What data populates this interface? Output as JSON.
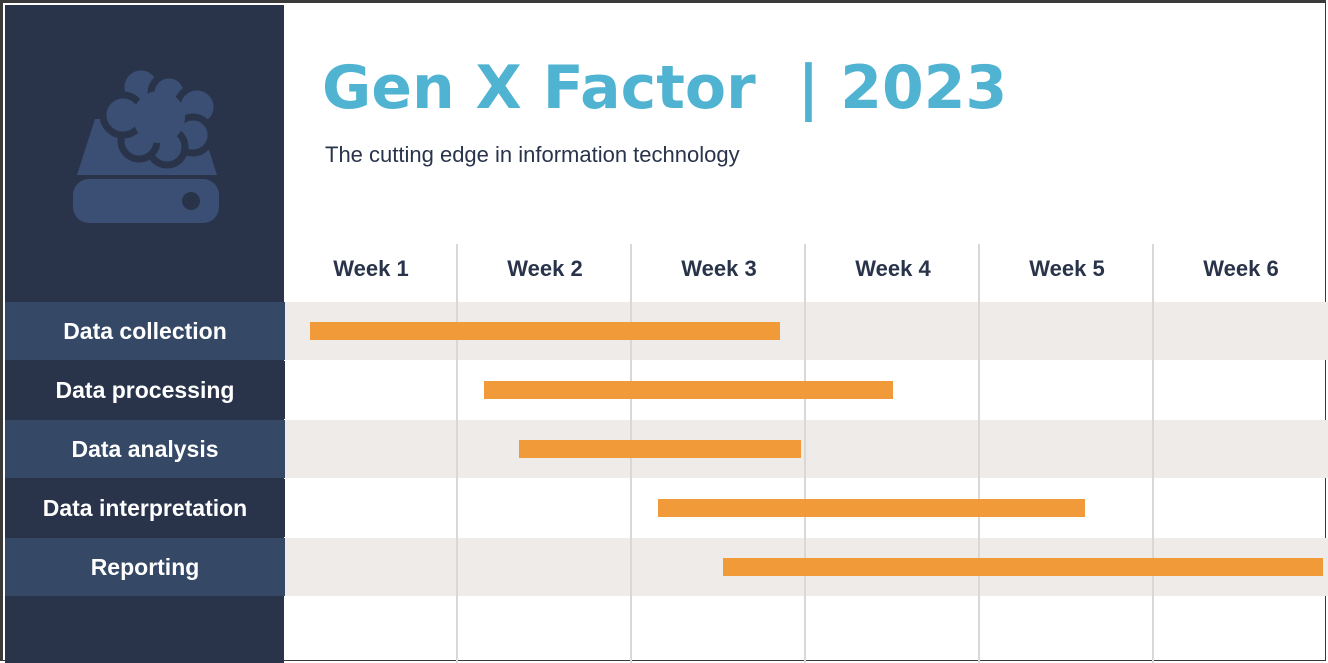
{
  "header": {
    "title": "Gen X Factor  | 2023",
    "subtitle": "The cutting edge in information technology"
  },
  "colors": {
    "sidebar": "#29344b",
    "label_highlight": "#354866",
    "accent": "#4fb3d1",
    "bar": "#f09a3a",
    "band": "#efebe8"
  },
  "logo": {
    "icon": "cloud-storage-icon"
  },
  "chart_data": {
    "type": "gantt",
    "x_unit": "week",
    "xlim": [
      0,
      6
    ],
    "categories": [
      "Week 1",
      "Week 2",
      "Week 3",
      "Week 4",
      "Week 5",
      "Week 6"
    ],
    "tasks": [
      {
        "name": "Data collection",
        "start": 0.1,
        "end": 2.8
      },
      {
        "name": "Data processing",
        "start": 1.1,
        "end": 3.45
      },
      {
        "name": "Data analysis",
        "start": 1.3,
        "end": 2.92
      },
      {
        "name": "Data interpretation",
        "start": 2.1,
        "end": 4.55
      },
      {
        "name": "Reporting",
        "start": 2.47,
        "end": 5.92
      }
    ]
  }
}
